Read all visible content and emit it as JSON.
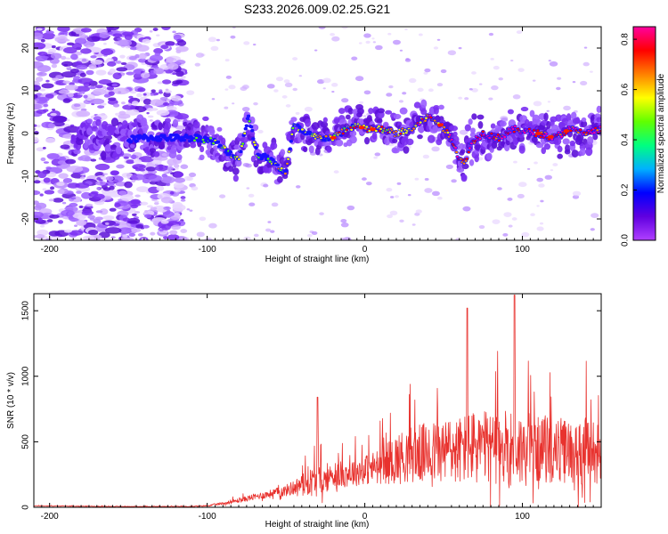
{
  "title": "S233.2026.009.02.25.G21",
  "chart_data": [
    {
      "type": "heatmap",
      "xlabel": "Height of straight line (km)",
      "ylabel": "Frequency (Hz)",
      "xlim": [
        -210,
        150
      ],
      "ylim": [
        -25,
        25
      ],
      "xticks": [
        -200,
        -100,
        0,
        100
      ],
      "yticks": [
        -20,
        -10,
        0,
        10,
        20
      ],
      "ridge": {
        "x": [
          -175,
          -160,
          -140,
          -120,
          -105,
          -95,
          -88,
          -80,
          -74,
          -68,
          -60,
          -55,
          -50,
          -45,
          -38,
          -30,
          -20,
          -12,
          -5,
          0,
          10,
          20,
          30,
          40,
          48,
          55,
          60,
          63,
          68,
          75,
          85,
          95,
          110,
          120,
          130,
          140,
          150
        ],
        "y": [
          -1,
          -2,
          -1,
          -1,
          -1,
          -2,
          -4,
          -6,
          4,
          -5,
          -6,
          -8,
          -9,
          2,
          0,
          -1,
          -1,
          1,
          2,
          1,
          1,
          0,
          1,
          4,
          2,
          -1,
          -6,
          -7,
          -2,
          0,
          -1,
          1,
          0,
          -1,
          1,
          0,
          1
        ]
      },
      "colorbar": {
        "label": "Normalized spectral amplitude",
        "min": 0.0,
        "max": 0.85,
        "ticks": [
          "0.0",
          "0.2",
          "0.4",
          "0.6",
          "0.8"
        ],
        "colors": [
          "#ffffff",
          "#b040ff",
          "#6000e0",
          "#0000ff",
          "#00b0ff",
          "#00ff80",
          "#60ff00",
          "#ffff00",
          "#ff8000",
          "#ff0000",
          "#ff00a0"
        ]
      }
    },
    {
      "type": "line",
      "xlabel": "Height of straight line (km)",
      "ylabel": "SNR (10 * v/v)",
      "xlim": [
        -210,
        150
      ],
      "ylim": [
        0,
        1630
      ],
      "xticks": [
        -200,
        -100,
        0,
        100
      ],
      "yticks": [
        0,
        500,
        1000,
        1500
      ],
      "color": "#e8322e",
      "envelope": {
        "x": [
          -210,
          -150,
          -110,
          -100,
          -90,
          -80,
          -70,
          -60,
          -50,
          -40,
          -32,
          -25,
          -20,
          -10,
          0,
          10,
          20,
          30,
          40,
          50,
          60,
          65,
          70,
          80,
          90,
          95,
          100,
          110,
          120,
          130,
          140,
          150
        ],
        "base": [
          10,
          5,
          5,
          10,
          25,
          45,
          70,
          90,
          110,
          150,
          150,
          170,
          200,
          220,
          240,
          260,
          290,
          320,
          320,
          330,
          330,
          340,
          340,
          340,
          330,
          330,
          320,
          340,
          330,
          320,
          320,
          310
        ],
        "amp": [
          10,
          8,
          10,
          20,
          40,
          60,
          90,
          110,
          160,
          250,
          450,
          350,
          350,
          380,
          420,
          500,
          700,
          800,
          850,
          900,
          950,
          1000,
          1050,
          1000,
          1100,
          1200,
          1000,
          900,
          950,
          900,
          950,
          950
        ]
      }
    }
  ]
}
